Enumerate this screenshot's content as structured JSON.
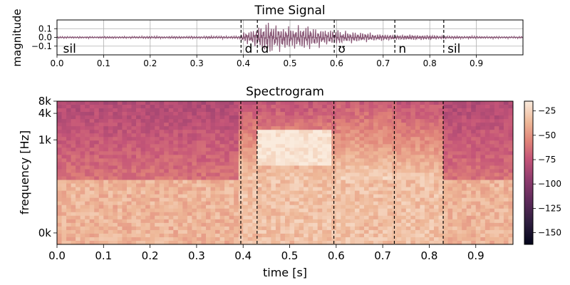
{
  "chart_data": [
    {
      "type": "line",
      "title": "Time Signal",
      "xlabel": "",
      "ylabel": "magnitude",
      "xlim": [
        0.0,
        1.0
      ],
      "ylim": [
        -0.2,
        0.2
      ],
      "xticks": [
        0.0,
        0.1,
        0.2,
        0.3,
        0.4,
        0.5,
        0.6,
        0.7,
        0.8,
        0.9
      ],
      "xtick_labels": [
        "0.0",
        "0.1",
        "0.2",
        "0.3",
        "0.4",
        "0.5",
        "0.6",
        "0.7",
        "0.8",
        "0.9"
      ],
      "yticks": [
        0.1,
        0.0,
        -0.1
      ],
      "ytick_labels": [
        "0.1",
        "0.0",
        "−0.1"
      ],
      "grid": true,
      "line_color": "#8b5a78",
      "boundaries": [
        0.395,
        0.43,
        0.595,
        0.725,
        0.83
      ],
      "phone_labels": [
        {
          "text": "sil",
          "x": 0.01
        },
        {
          "text": "d",
          "x": 0.4
        },
        {
          "text": "ɑ",
          "x": 0.435
        },
        {
          "text": "ʊ",
          "x": 0.6
        },
        {
          "text": "n",
          "x": 0.73
        },
        {
          "text": "sil",
          "x": 0.835
        }
      ],
      "envelope": [
        {
          "t": 0.0,
          "a": 0.01
        },
        {
          "t": 0.39,
          "a": 0.015
        },
        {
          "t": 0.4,
          "a": 0.05
        },
        {
          "t": 0.43,
          "a": 0.12
        },
        {
          "t": 0.45,
          "a": 0.17
        },
        {
          "t": 0.5,
          "a": 0.13
        },
        {
          "t": 0.55,
          "a": 0.12
        },
        {
          "t": 0.6,
          "a": 0.08
        },
        {
          "t": 0.7,
          "a": 0.035
        },
        {
          "t": 0.8,
          "a": 0.025
        },
        {
          "t": 0.85,
          "a": 0.015
        },
        {
          "t": 1.0,
          "a": 0.01
        }
      ]
    },
    {
      "type": "heatmap",
      "title": "Spectrogram",
      "xlabel": "time [s]",
      "ylabel": "frequency [Hz]",
      "xlim": [
        0.0,
        0.98
      ],
      "xticks": [
        0.0,
        0.1,
        0.2,
        0.3,
        0.4,
        0.5,
        0.6,
        0.7,
        0.8,
        0.9
      ],
      "xtick_labels": [
        "0.0",
        "0.1",
        "0.2",
        "0.3",
        "0.4",
        "0.5",
        "0.6",
        "0.7",
        "0.8",
        "0.9"
      ],
      "yticks": [
        "8k",
        "4k",
        "1k",
        "0k"
      ],
      "colormap": "rocket",
      "colorbar_range": [
        -162,
        -15
      ],
      "colorbar_ticks": [
        -25,
        -50,
        -75,
        -100,
        -125,
        -150
      ],
      "colorbar_tick_labels": [
        "−25",
        "−50",
        "−75",
        "−100",
        "−125",
        "−150"
      ],
      "boundaries": [
        0.395,
        0.43,
        0.595,
        0.725,
        0.83
      ]
    }
  ]
}
